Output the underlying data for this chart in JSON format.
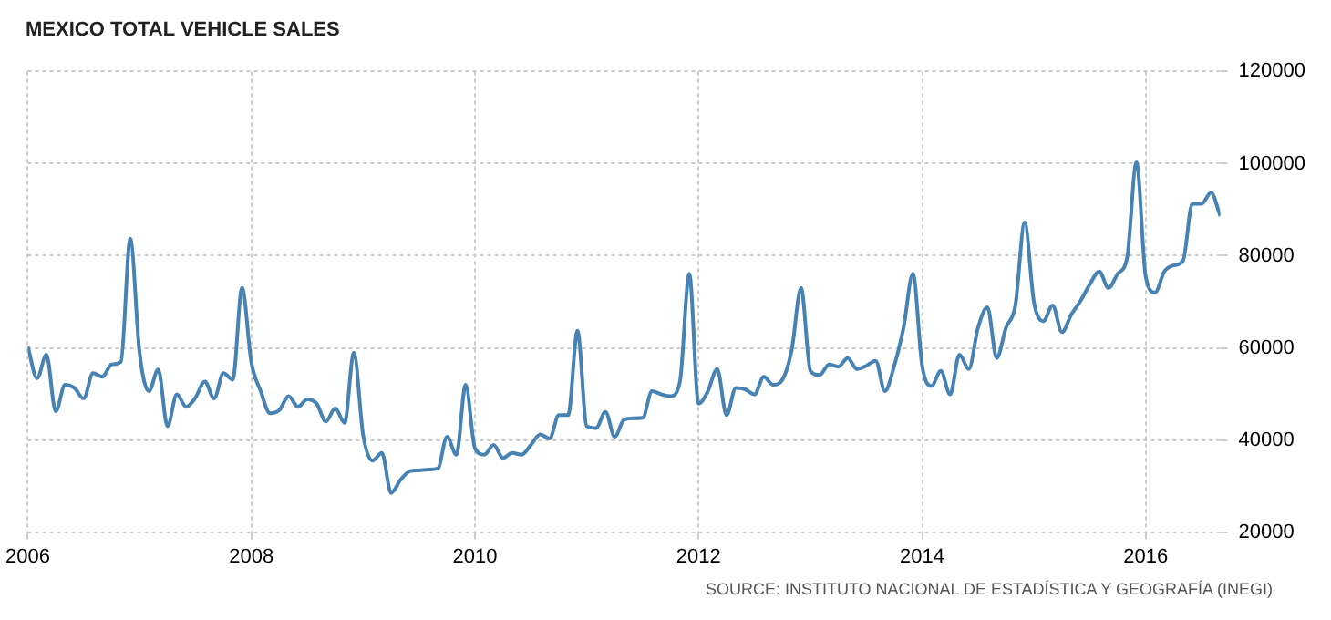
{
  "chart_data": {
    "type": "line",
    "title": "MEXICO TOTAL VEHICLE SALES",
    "annotations": [
      "SOURCE: INSTITUTO NACIONAL DE ESTADÍSTICA Y GEOGRAFÍA (INEGI)"
    ],
    "x": [
      "2006-01",
      "2006-02",
      "2006-03",
      "2006-04",
      "2006-05",
      "2006-06",
      "2006-07",
      "2006-08",
      "2006-09",
      "2006-10",
      "2006-11",
      "2006-12",
      "2007-01",
      "2007-02",
      "2007-03",
      "2007-04",
      "2007-05",
      "2007-06",
      "2007-07",
      "2007-08",
      "2007-09",
      "2007-10",
      "2007-11",
      "2007-12",
      "2008-01",
      "2008-02",
      "2008-03",
      "2008-04",
      "2008-05",
      "2008-06",
      "2008-07",
      "2008-08",
      "2008-09",
      "2008-10",
      "2008-11",
      "2008-12",
      "2009-01",
      "2009-02",
      "2009-03",
      "2009-04",
      "2009-05",
      "2009-06",
      "2009-07",
      "2009-08",
      "2009-09",
      "2009-10",
      "2009-11",
      "2009-12",
      "2010-01",
      "2010-02",
      "2010-03",
      "2010-04",
      "2010-05",
      "2010-06",
      "2010-07",
      "2010-08",
      "2010-09",
      "2010-10",
      "2010-11",
      "2010-12",
      "2011-01",
      "2011-02",
      "2011-03",
      "2011-04",
      "2011-05",
      "2011-06",
      "2011-07",
      "2011-08",
      "2011-09",
      "2011-10",
      "2011-11",
      "2011-12",
      "2012-01",
      "2012-02",
      "2012-03",
      "2012-04",
      "2012-05",
      "2012-06",
      "2012-07",
      "2012-08",
      "2012-09",
      "2012-10",
      "2012-11",
      "2012-12",
      "2013-01",
      "2013-02",
      "2013-03",
      "2013-04",
      "2013-05",
      "2013-06",
      "2013-07",
      "2013-08",
      "2013-09",
      "2013-10",
      "2013-11",
      "2013-12",
      "2014-01",
      "2014-02",
      "2014-03",
      "2014-04",
      "2014-05",
      "2014-06",
      "2014-07",
      "2014-08",
      "2014-09",
      "2014-10",
      "2014-11",
      "2014-12",
      "2015-01",
      "2015-02",
      "2015-03",
      "2015-04",
      "2015-05",
      "2015-06",
      "2015-07",
      "2015-08",
      "2015-09",
      "2015-10",
      "2015-11",
      "2015-12",
      "2016-01",
      "2016-02",
      "2016-03",
      "2016-04",
      "2016-05",
      "2016-06",
      "2016-07",
      "2016-08",
      "2016-09"
    ],
    "series": [
      {
        "color": "#4682b4",
        "values": [
          60300,
          53400,
          58500,
          46200,
          52000,
          51300,
          49000,
          54500,
          53700,
          56400,
          57000,
          83700,
          58900,
          50600,
          55300,
          43000,
          49900,
          47200,
          49200,
          52700,
          49000,
          54500,
          53100,
          73000,
          56800,
          50600,
          45800,
          46500,
          49500,
          47200,
          48800,
          47900,
          44000,
          46900,
          43700,
          58900,
          41000,
          35500,
          37200,
          28500,
          31300,
          33200,
          33400,
          33600,
          33800,
          40700,
          36800,
          52000,
          38200,
          36800,
          38900,
          36100,
          37200,
          36800,
          38900,
          41200,
          40300,
          45400,
          45400,
          63700,
          43000,
          42600,
          46100,
          40700,
          44400,
          44700,
          44800,
          50600,
          49900,
          49500,
          52700,
          76100,
          47900,
          50600,
          55400,
          45400,
          51300,
          51000,
          49900,
          53700,
          52000,
          53100,
          59600,
          73000,
          55000,
          54100,
          56400,
          55900,
          57800,
          55400,
          56100,
          57200,
          50600,
          56100,
          64400,
          76100,
          56100,
          51700,
          55000,
          49900,
          58500,
          55400,
          64400,
          68800,
          57800,
          64400,
          69200,
          87200,
          69900,
          65800,
          69200,
          63400,
          67200,
          70200,
          73800,
          76600,
          73000,
          76100,
          79600,
          100300,
          75400,
          72000,
          76600,
          77900,
          78900,
          91300,
          91300,
          93700,
          88600
        ]
      }
    ],
    "xlim": [
      "2006-01",
      "2016-09"
    ],
    "xticks": [
      {
        "value": "2006",
        "label": "2006"
      },
      {
        "value": "2008",
        "label": "2008"
      },
      {
        "value": "2010",
        "label": "2010"
      },
      {
        "value": "2012",
        "label": "2012"
      },
      {
        "value": "2014",
        "label": "2014"
      },
      {
        "value": "2016",
        "label": "2016"
      }
    ],
    "ylim": [
      20000,
      120000
    ],
    "yticks": [
      20000,
      40000,
      60000,
      80000,
      100000,
      120000
    ],
    "grid": true,
    "legend": false,
    "marker": "none",
    "line_style": "solid"
  }
}
